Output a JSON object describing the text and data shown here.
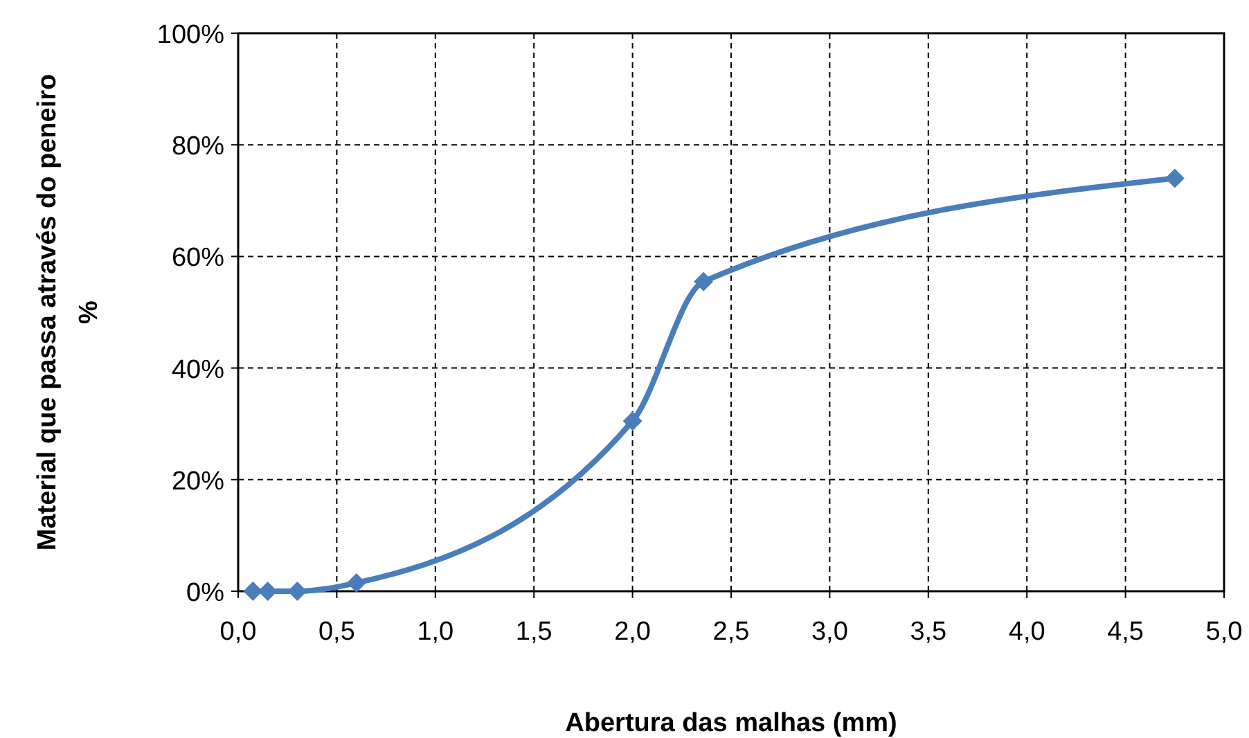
{
  "chart_data": {
    "type": "line",
    "xlabel": "Abertura das malhas (mm)",
    "ylabel": "Material que passa através do peneiro\n%",
    "x": [
      0.075,
      0.15,
      0.3,
      0.6,
      2.0,
      2.36,
      4.75
    ],
    "series": [
      {
        "color": "#4a7ebb",
        "values": [
          0,
          0,
          0,
          1.5,
          30.5,
          55.5,
          74
        ]
      }
    ],
    "xlim": [
      0,
      5
    ],
    "ylim": [
      0,
      100
    ],
    "xticks": [
      {
        "value": 0,
        "label": "0,0"
      },
      {
        "value": 0.5,
        "label": "0,5"
      },
      {
        "value": 1,
        "label": "1,0"
      },
      {
        "value": 1.5,
        "label": "1,5"
      },
      {
        "value": 2,
        "label": "2,0"
      },
      {
        "value": 2.5,
        "label": "2,5"
      },
      {
        "value": 3,
        "label": "3,0"
      },
      {
        "value": 3.5,
        "label": "3,5"
      },
      {
        "value": 4,
        "label": "4,0"
      },
      {
        "value": 4.5,
        "label": "4,5"
      },
      {
        "value": 5,
        "label": "5,0"
      }
    ],
    "yticks": [
      {
        "value": 0,
        "label": "0%"
      },
      {
        "value": 20,
        "label": "20%"
      },
      {
        "value": 40,
        "label": "40%"
      },
      {
        "value": 60,
        "label": "60%"
      },
      {
        "value": 80,
        "label": "80%"
      },
      {
        "value": 100,
        "label": "100%"
      }
    ],
    "grid": true,
    "marker": "diamond",
    "line_style": "solid"
  }
}
